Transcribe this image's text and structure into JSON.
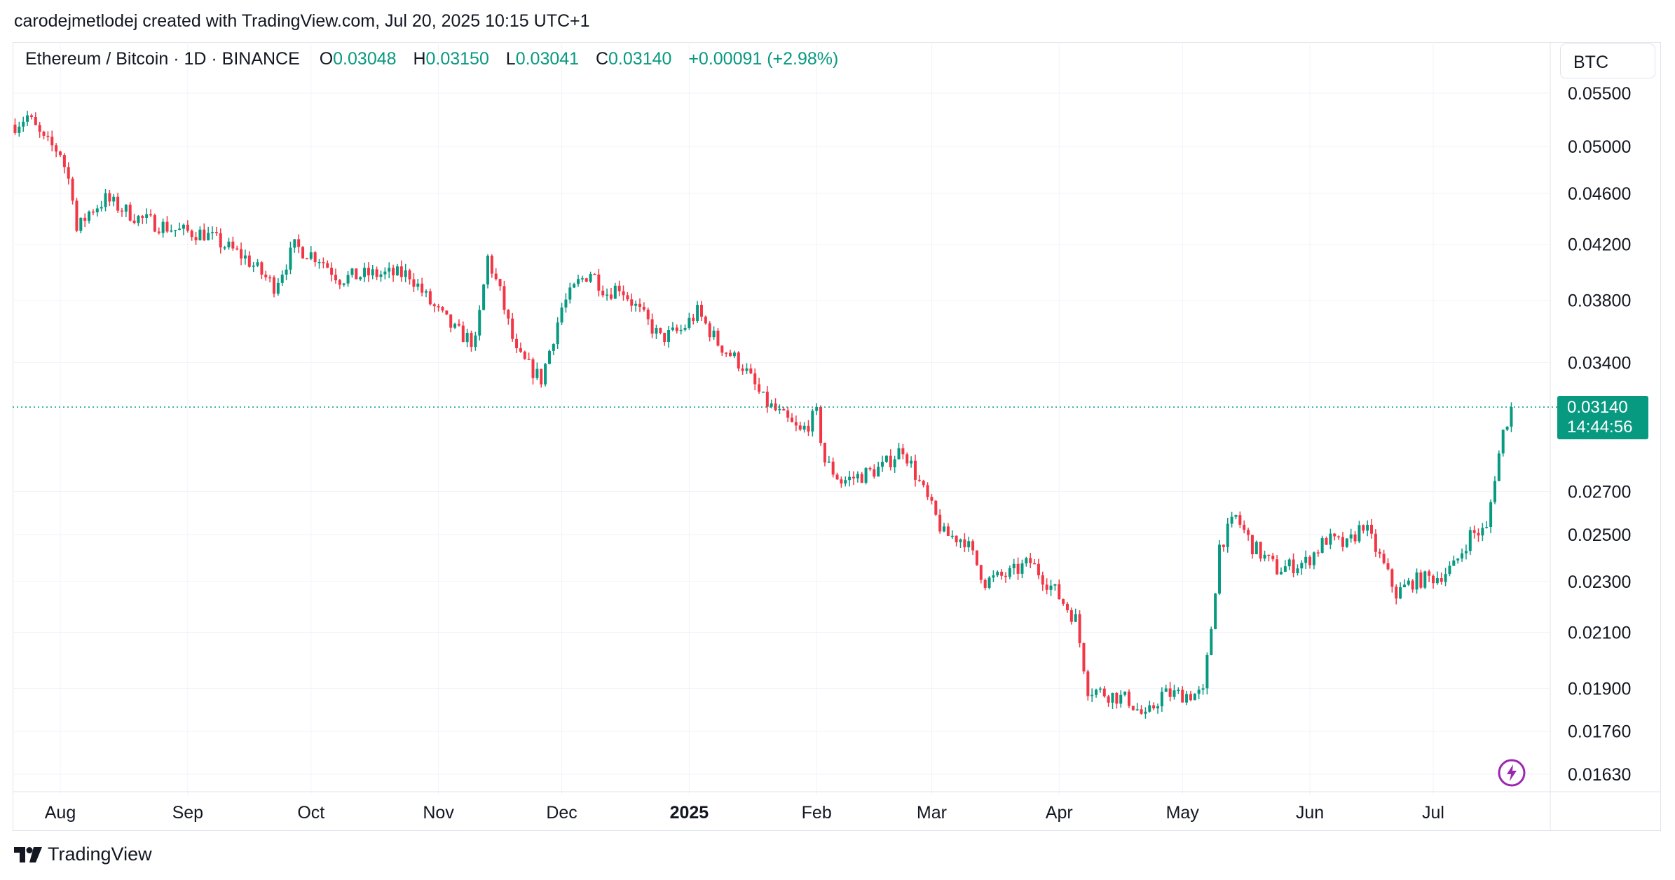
{
  "header": {
    "credit": "carodejmetlodej created with TradingView.com, Jul 20, 2025 10:15 UTC+1"
  },
  "legend": {
    "symbol": "Ethereum / Bitcoin · 1D · BINANCE",
    "open_label": "O",
    "open": "0.03048",
    "high_label": "H",
    "high": "0.03150",
    "low_label": "L",
    "low": "0.03041",
    "close_label": "C",
    "close": "0.03140",
    "change": "+0.00091 (+2.98%)"
  },
  "currency": "BTC",
  "price_tag": {
    "price": "0.03140",
    "countdown": "14:44:56"
  },
  "footer": {
    "brand": "TradingView"
  },
  "colors": {
    "up": "#089981",
    "down": "#f23645",
    "grid": "#f0f3fa",
    "text": "#131722",
    "bolt": "#9c27b0"
  },
  "icons": {
    "logo": "tradingview-logo-icon",
    "bolt": "lightning-bolt-icon"
  },
  "chart_data": {
    "type": "candlestick",
    "scale": "log",
    "x_range": [
      "2024-07-20",
      "2025-07-20"
    ],
    "y_ticks": [
      0.055,
      0.05,
      0.046,
      0.042,
      0.038,
      0.034,
      0.027,
      0.025,
      0.023,
      0.021,
      0.019,
      0.0176,
      0.0163
    ],
    "y_tick_labels": [
      "0.05500",
      "0.05000",
      "0.04600",
      "0.04200",
      "0.03800",
      "0.03400",
      "0.02700",
      "0.02500",
      "0.02300",
      "0.02100",
      "0.01900",
      "0.01760",
      "0.01630"
    ],
    "x_ticks": [
      {
        "date": "2024-08-01",
        "label": "Aug",
        "bold": false
      },
      {
        "date": "2024-09-01",
        "label": "Sep",
        "bold": false
      },
      {
        "date": "2024-10-01",
        "label": "Oct",
        "bold": false
      },
      {
        "date": "2024-11-01",
        "label": "Nov",
        "bold": false
      },
      {
        "date": "2024-12-01",
        "label": "Dec",
        "bold": false
      },
      {
        "date": "2025-01-01",
        "label": "2025",
        "bold": true
      },
      {
        "date": "2025-02-01",
        "label": "Feb",
        "bold": false
      },
      {
        "date": "2025-03-01",
        "label": "Mar",
        "bold": false
      },
      {
        "date": "2025-04-01",
        "label": "Apr",
        "bold": false
      },
      {
        "date": "2025-05-01",
        "label": "May",
        "bold": false
      },
      {
        "date": "2025-06-01",
        "label": "Jun",
        "bold": false
      },
      {
        "date": "2025-07-01",
        "label": "Jul",
        "bold": false
      }
    ],
    "last_price": 0.0314,
    "key_closes": [
      [
        "2024-07-21",
        0.052
      ],
      [
        "2024-07-24",
        0.0528
      ],
      [
        "2024-07-28",
        0.0505
      ],
      [
        "2024-08-01",
        0.0495
      ],
      [
        "2024-08-04",
        0.046
      ],
      [
        "2024-08-05",
        0.043
      ],
      [
        "2024-08-08",
        0.0445
      ],
      [
        "2024-08-12",
        0.0455
      ],
      [
        "2024-08-20",
        0.044
      ],
      [
        "2024-08-30",
        0.043
      ],
      [
        "2024-09-05",
        0.0428
      ],
      [
        "2024-09-15",
        0.041
      ],
      [
        "2024-09-22",
        0.039
      ],
      [
        "2024-09-27",
        0.0418
      ],
      [
        "2024-10-03",
        0.041
      ],
      [
        "2024-10-08",
        0.0395
      ],
      [
        "2024-10-15",
        0.0398
      ],
      [
        "2024-10-25",
        0.0398
      ],
      [
        "2024-10-30",
        0.0378
      ],
      [
        "2024-11-05",
        0.036
      ],
      [
        "2024-11-10",
        0.0352
      ],
      [
        "2024-11-13",
        0.041
      ],
      [
        "2024-11-16",
        0.0385
      ],
      [
        "2024-11-20",
        0.0345
      ],
      [
        "2024-11-26",
        0.033
      ],
      [
        "2024-12-01",
        0.0375
      ],
      [
        "2024-12-05",
        0.0392
      ],
      [
        "2024-12-08",
        0.04
      ],
      [
        "2024-12-12",
        0.0385
      ],
      [
        "2024-12-15",
        0.039
      ],
      [
        "2024-12-22",
        0.0365
      ],
      [
        "2024-12-25",
        0.0355
      ],
      [
        "2024-12-30",
        0.036
      ],
      [
        "2025-01-03",
        0.0372
      ],
      [
        "2025-01-08",
        0.0352
      ],
      [
        "2025-01-14",
        0.0338
      ],
      [
        "2025-01-19",
        0.0318
      ],
      [
        "2025-01-23",
        0.031
      ],
      [
        "2025-01-28",
        0.03
      ],
      [
        "2025-02-01",
        0.031
      ],
      [
        "2025-02-03",
        0.0285
      ],
      [
        "2025-02-07",
        0.0275
      ],
      [
        "2025-02-12",
        0.0278
      ],
      [
        "2025-02-17",
        0.0282
      ],
      [
        "2025-02-22",
        0.0292
      ],
      [
        "2025-02-27",
        0.027
      ],
      [
        "2025-03-04",
        0.025
      ],
      [
        "2025-03-09",
        0.0248
      ],
      [
        "2025-03-14",
        0.023
      ],
      [
        "2025-03-20",
        0.0233
      ],
      [
        "2025-03-25",
        0.0238
      ],
      [
        "2025-03-31",
        0.0226
      ],
      [
        "2025-04-05",
        0.0215
      ],
      [
        "2025-04-08",
        0.019
      ],
      [
        "2025-04-13",
        0.0188
      ],
      [
        "2025-04-18",
        0.0186
      ],
      [
        "2025-04-22",
        0.018
      ],
      [
        "2025-04-26",
        0.0188
      ],
      [
        "2025-04-30",
        0.0188
      ],
      [
        "2025-05-06",
        0.0188
      ],
      [
        "2025-05-08",
        0.0212
      ],
      [
        "2025-05-10",
        0.0245
      ],
      [
        "2025-05-14",
        0.0258
      ],
      [
        "2025-05-18",
        0.0245
      ],
      [
        "2025-05-24",
        0.0235
      ],
      [
        "2025-05-31",
        0.0238
      ],
      [
        "2025-06-05",
        0.0248
      ],
      [
        "2025-06-10",
        0.0245
      ],
      [
        "2025-06-14",
        0.0255
      ],
      [
        "2025-06-18",
        0.024
      ],
      [
        "2025-06-22",
        0.0225
      ],
      [
        "2025-06-26",
        0.023
      ],
      [
        "2025-07-02",
        0.0232
      ],
      [
        "2025-07-06",
        0.0236
      ],
      [
        "2025-07-10",
        0.025
      ],
      [
        "2025-07-14",
        0.0252
      ],
      [
        "2025-07-16",
        0.0278
      ],
      [
        "2025-07-18",
        0.03
      ],
      [
        "2025-07-20",
        0.0314
      ]
    ]
  }
}
